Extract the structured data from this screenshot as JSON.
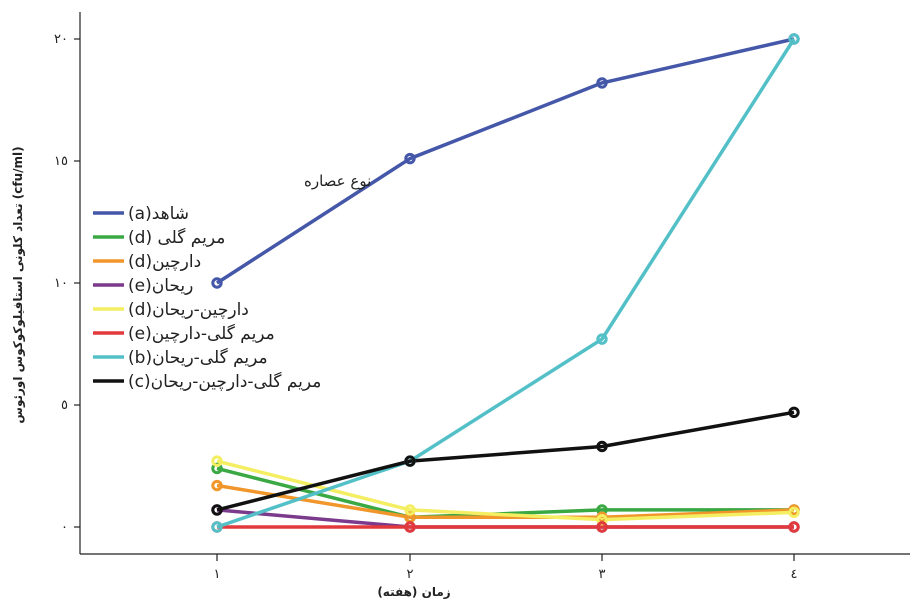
{
  "chart_data": {
    "type": "line",
    "x": [
      1,
      2,
      3,
      4
    ],
    "x_tick_labels": [
      "١",
      "٢",
      "٣",
      "٤"
    ],
    "y_ticks": [
      0,
      5,
      10,
      15,
      20
    ],
    "y_tick_labels": [
      "٠",
      "٥",
      "١٠",
      "١٥",
      "٢٠"
    ],
    "ylim": [
      0,
      20.5
    ],
    "xlabel": "زمان (هفته)",
    "ylabel": "تعداد کلونی استافیلوکوکوس اورئوس (cfu/ml)",
    "legend_title": "نوع عصاره",
    "legend_position": "left",
    "series": [
      {
        "name": "شاهد(a)",
        "color": "#4557a8",
        "values": [
          10,
          15.1,
          18.2,
          20
        ]
      },
      {
        "name": "مریم گلی (d)",
        "color": "#3aa843",
        "values": [
          2.4,
          0.4,
          0.7,
          0.7
        ]
      },
      {
        "name": "دارچین(d)",
        "color": "#f0962b",
        "values": [
          1.7,
          0.4,
          0.4,
          0.7
        ]
      },
      {
        "name": "ریحان(e)",
        "color": "#7b3a8c",
        "values": [
          0.7,
          0,
          0,
          0
        ]
      },
      {
        "name": "دارچین-ریحان(d)",
        "color": "#f4ee62",
        "values": [
          2.7,
          0.7,
          0.3,
          0.6
        ]
      },
      {
        "name": "مریم گلی-دارچین(e)",
        "color": "#e23a3c",
        "values": [
          0,
          0,
          0,
          0
        ]
      },
      {
        "name": "مریم گلی-ریحان(b)",
        "color": "#53c0c8",
        "values": [
          0,
          2.7,
          7.7,
          20
        ]
      },
      {
        "name": "مریم گلی-دارچین-ریحان(c)",
        "color": "#111111",
        "values": [
          0.7,
          2.7,
          3.3,
          4.7
        ]
      }
    ]
  }
}
